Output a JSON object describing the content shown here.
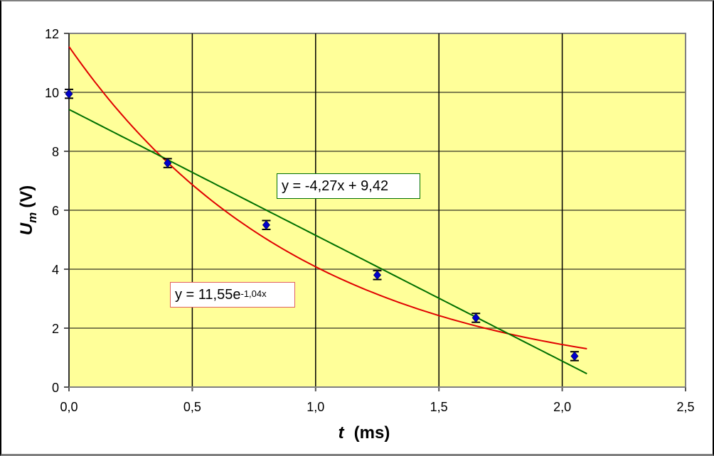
{
  "chart_data": {
    "type": "scatter",
    "title": "",
    "xlabel": "t  (ms)",
    "xlabel_var": "t",
    "xlabel_unit": "(ms)",
    "ylabel": "U_m (V)",
    "ylabel_var": "U",
    "ylabel_sub": "m",
    "ylabel_unit": "(V)",
    "xlim": [
      0,
      2.5
    ],
    "ylim": [
      0,
      12
    ],
    "x_ticks": [
      "0,0",
      "0,5",
      "1,0",
      "1,5",
      "2,0",
      "2,5"
    ],
    "y_ticks": [
      "0",
      "2",
      "4",
      "6",
      "8",
      "10",
      "12"
    ],
    "grid": true,
    "background": "#FFFF99",
    "series": [
      {
        "name": "Measured U_m",
        "kind": "scatter",
        "marker": "diamond",
        "color": "#0000CC",
        "x": [
          0.0,
          0.4,
          0.8,
          1.25,
          1.65,
          2.05
        ],
        "y": [
          9.95,
          7.6,
          5.5,
          3.8,
          2.35,
          1.05
        ],
        "y_error": 0.15
      },
      {
        "name": "Exponential fit",
        "kind": "trendline",
        "color": "#E00000",
        "equation": "y = 11,55e^(-1,04x)",
        "a": 11.55,
        "b": -1.04,
        "x_range": [
          0,
          2.1
        ]
      },
      {
        "name": "Linear fit",
        "kind": "trendline",
        "color": "#007000",
        "equation": "y = -4,27x + 9,42",
        "slope": -4.27,
        "intercept": 9.42,
        "x_range": [
          0,
          2.1
        ]
      }
    ],
    "annotations": [
      {
        "text_main": "y = -4,27x + 9,42",
        "border": "#007000"
      },
      {
        "text_main": "y = 11,55e",
        "text_sup": "-1,04x",
        "border": "#E06060"
      }
    ]
  }
}
